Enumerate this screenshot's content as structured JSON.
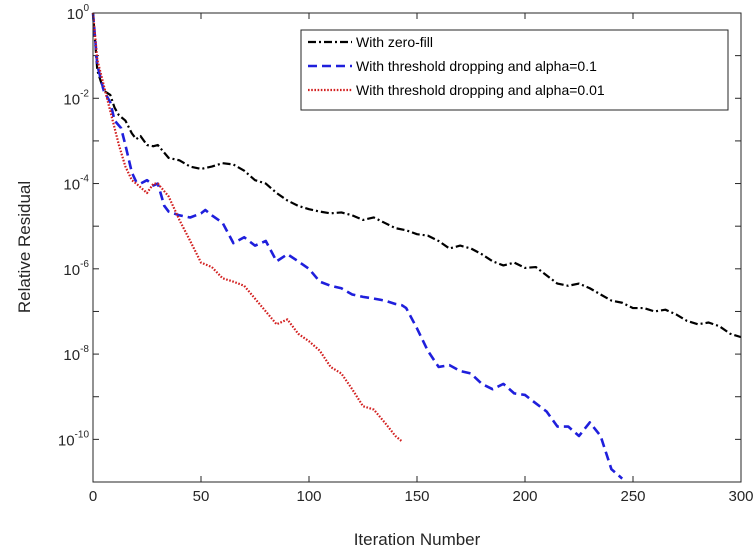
{
  "chart_data": {
    "type": "line",
    "xlabel": "Iteration Number",
    "ylabel": "Relative Residual",
    "xlim": [
      0,
      300
    ],
    "ylim": [
      1e-11,
      1
    ],
    "yscale": "log",
    "grid": false,
    "legend_position": "top-right",
    "x_ticks": [
      "0",
      "50",
      "100",
      "150",
      "200",
      "250",
      "300"
    ],
    "y_ticks": [
      {
        "value": 1,
        "base": "10",
        "exp": "0"
      },
      {
        "value": 0.01,
        "base": "10",
        "exp": "-2"
      },
      {
        "value": 0.0001,
        "base": "10",
        "exp": "-4"
      },
      {
        "value": 1e-06,
        "base": "10",
        "exp": "-6"
      },
      {
        "value": 1e-08,
        "base": "10",
        "exp": "-8"
      },
      {
        "value": 1e-10,
        "base": "10",
        "exp": "-10"
      }
    ],
    "series": [
      {
        "name": "With zero-fill",
        "color": "#000000",
        "style": "dashdot",
        "x": [
          0,
          2,
          5,
          8,
          10,
          12,
          15,
          18,
          20,
          22,
          25,
          28,
          30,
          35,
          40,
          45,
          50,
          55,
          60,
          65,
          70,
          75,
          80,
          85,
          90,
          95,
          100,
          105,
          110,
          115,
          120,
          125,
          130,
          135,
          140,
          145,
          150,
          155,
          160,
          165,
          170,
          175,
          180,
          185,
          190,
          195,
          200,
          205,
          210,
          215,
          220,
          225,
          230,
          235,
          240,
          245,
          250,
          255,
          260,
          265,
          270,
          275,
          280,
          285,
          290,
          295,
          300
        ],
        "y": [
          1,
          0.045,
          0.015,
          0.012,
          0.006,
          0.004,
          0.003,
          0.0015,
          0.0011,
          0.0013,
          0.0008,
          0.00075,
          0.0008,
          0.0004,
          0.00035,
          0.00025,
          0.00022,
          0.00025,
          0.0003,
          0.00028,
          0.0002,
          0.00012,
          0.0001,
          6e-05,
          4e-05,
          3e-05,
          2.5e-05,
          2.2e-05,
          2e-05,
          2.1e-05,
          1.8e-05,
          1.4e-05,
          1.6e-05,
          1.2e-05,
          9e-06,
          8e-06,
          6.5e-06,
          6e-06,
          4.5e-06,
          3e-06,
          3.5e-06,
          3e-06,
          2.2e-06,
          1.5e-06,
          1.2e-06,
          1.4e-06,
          1.05e-06,
          1.1e-06,
          7e-07,
          4.5e-07,
          4e-07,
          4.5e-07,
          3.5e-07,
          2.5e-07,
          1.8e-07,
          1.6e-07,
          1.2e-07,
          1.2e-07,
          1e-07,
          1.1e-07,
          8.5e-08,
          6e-08,
          5e-08,
          5.5e-08,
          4.5e-08,
          3e-08,
          2.5e-08
        ]
      },
      {
        "name": "With threshold dropping and alpha=0.1",
        "color": "#1f1fdc",
        "style": "dashed",
        "x": [
          0,
          2,
          5,
          8,
          10,
          13,
          15,
          18,
          20,
          22,
          25,
          28,
          30,
          33,
          35,
          40,
          45,
          50,
          52,
          55,
          60,
          65,
          70,
          75,
          80,
          85,
          90,
          95,
          100,
          105,
          110,
          115,
          120,
          125,
          130,
          135,
          140,
          143,
          145,
          150,
          155,
          160,
          165,
          170,
          175,
          180,
          185,
          190,
          195,
          200,
          205,
          210,
          215,
          220,
          225,
          230,
          235,
          240,
          245
        ],
        "y": [
          1,
          0.06,
          0.015,
          0.008,
          0.003,
          0.002,
          0.0008,
          0.00018,
          0.00011,
          0.0001,
          0.00012,
          9e-05,
          0.0001,
          3e-05,
          2.2e-05,
          1.8e-05,
          1.6e-05,
          2e-05,
          2.4e-05,
          1.8e-05,
          1.2e-05,
          4e-06,
          5.5e-06,
          3.5e-06,
          4.5e-06,
          1.5e-06,
          2.2e-06,
          1.5e-06,
          1e-06,
          5e-07,
          4e-07,
          3.5e-07,
          2.5e-07,
          2.2e-07,
          2e-07,
          1.8e-07,
          1.5e-07,
          1.4e-07,
          1.2e-07,
          4e-08,
          1.2e-08,
          5e-09,
          5.5e-09,
          4e-09,
          3.5e-09,
          2e-09,
          1.5e-09,
          2e-09,
          1.2e-09,
          1.1e-09,
          7e-10,
          4.5e-10,
          2e-10,
          2e-10,
          1.2e-10,
          2.5e-10,
          1.2e-10,
          2e-11,
          1.2e-11
        ]
      },
      {
        "name": "With threshold dropping and alpha=0.01",
        "color": "#d21f1f",
        "style": "dotted",
        "x": [
          0,
          2,
          5,
          8,
          10,
          12,
          15,
          18,
          20,
          25,
          28,
          30,
          35,
          40,
          45,
          50,
          55,
          60,
          65,
          70,
          75,
          80,
          85,
          90,
          95,
          100,
          105,
          110,
          115,
          120,
          125,
          130,
          135,
          140,
          143
        ],
        "y": [
          1,
          0.08,
          0.02,
          0.005,
          0.002,
          0.0008,
          0.00025,
          0.00012,
          0.0001,
          6e-05,
          0.0001,
          0.0001,
          5e-05,
          1.4e-05,
          4.5e-06,
          1.4e-06,
          1.1e-06,
          6e-07,
          5e-07,
          4e-07,
          2e-07,
          1e-07,
          5e-08,
          6.5e-08,
          3e-08,
          2e-08,
          1.2e-08,
          5e-09,
          3.5e-09,
          1.5e-09,
          6e-10,
          5e-10,
          2.5e-10,
          1.2e-10,
          9e-11
        ]
      }
    ]
  }
}
